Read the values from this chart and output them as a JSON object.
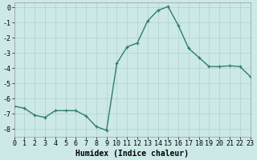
{
  "x": [
    0,
    1,
    2,
    3,
    4,
    5,
    6,
    7,
    8,
    9,
    10,
    11,
    12,
    13,
    14,
    15,
    16,
    17,
    18,
    19,
    20,
    21,
    22,
    23
  ],
  "y": [
    -6.5,
    -6.65,
    -7.1,
    -7.25,
    -6.8,
    -6.8,
    -6.8,
    -7.15,
    -7.85,
    -8.1,
    -3.7,
    -2.6,
    -2.35,
    -0.9,
    -0.2,
    0.05,
    -1.2,
    -2.7,
    -3.3,
    -3.9,
    -3.9,
    -3.85,
    -3.9,
    -4.55
  ],
  "line_color": "#2e7d6e",
  "marker": "+",
  "marker_size": 3,
  "linewidth": 1.0,
  "bg_color": "#cce9e7",
  "grid_color": "#b0d0ce",
  "xlabel": "Humidex (Indice chaleur)",
  "xlabel_fontsize": 7,
  "tick_fontsize": 6,
  "xlim": [
    0,
    23
  ],
  "ylim": [
    -8.5,
    0.3
  ],
  "yticks": [
    0,
    -1,
    -2,
    -3,
    -4,
    -5,
    -6,
    -7,
    -8
  ],
  "xticks": [
    0,
    1,
    2,
    3,
    4,
    5,
    6,
    7,
    8,
    9,
    10,
    11,
    12,
    13,
    14,
    15,
    16,
    17,
    18,
    19,
    20,
    21,
    22,
    23
  ]
}
